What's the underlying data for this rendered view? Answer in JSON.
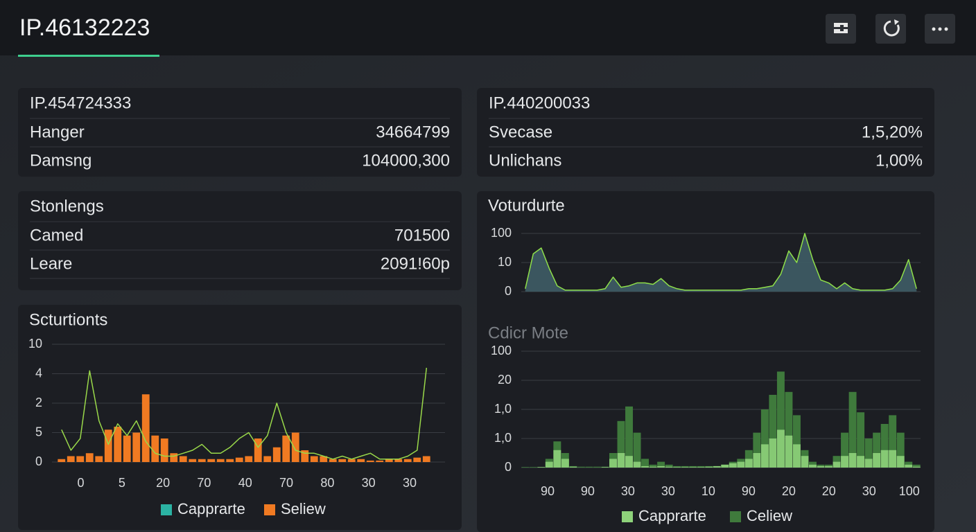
{
  "header": {
    "title": "IP.46132223"
  },
  "panels": [
    {
      "title": "IP.454724333",
      "rows": [
        [
          "Hanger",
          "34664799"
        ],
        [
          "Damsng",
          "104000,300"
        ]
      ]
    },
    {
      "title": "IP.440200033",
      "rows": [
        [
          "Svecase",
          "1,5,20%"
        ],
        [
          "Unlichans",
          "1,00%"
        ]
      ]
    },
    {
      "title": "Stonlengs",
      "rows": [
        [
          "Camed",
          "701500"
        ],
        [
          "Leare",
          "2091!60p"
        ]
      ]
    }
  ],
  "chart_data": [
    {
      "type": "combo",
      "title": "Scturtionts",
      "ylim": [
        0,
        4
      ],
      "yticks": [
        0,
        {
          "value": 1,
          "label": "5"
        },
        {
          "value": 2,
          "label": "2"
        },
        {
          "value": 3,
          "label": "4"
        },
        {
          "value": 4,
          "label": "10"
        }
      ],
      "xlim": [
        -0.7,
        8.86
      ],
      "xticks": [
        0,
        {
          "value": 1,
          "label": "5"
        },
        {
          "value": 2,
          "label": "20"
        },
        {
          "value": 3,
          "label": "70"
        },
        {
          "value": 4,
          "label": "40"
        },
        {
          "value": 5,
          "label": "70"
        },
        {
          "value": 6,
          "label": "80"
        },
        {
          "value": 7,
          "label": "30"
        },
        {
          "value": 8,
          "label": "30"
        }
      ],
      "grid": true,
      "series": [
        {
          "name": "Capprarte",
          "kind": "line",
          "color": "#2bb3a3",
          "line_color": "#9ad94a",
          "values": [
            1.1,
            0.4,
            0.8,
            3.1,
            1.4,
            0.6,
            1.3,
            0.9,
            1.4,
            0.7,
            0.3,
            0.2,
            0.2,
            0.3,
            0.4,
            0.6,
            0.3,
            0.3,
            0.5,
            0.8,
            1.0,
            0.5,
            0.9,
            2.0,
            1.0,
            0.4,
            0.3,
            0.3,
            0.2,
            0.1,
            0.2,
            0.1,
            0.2,
            0.3,
            0.1,
            0.1,
            0.1,
            0.2,
            0.4,
            3.2
          ]
        },
        {
          "name": "Seliew",
          "kind": "bar",
          "color": "#f07a22",
          "values": [
            0.1,
            0.2,
            0.2,
            0.3,
            0.2,
            1.1,
            1.2,
            0.9,
            1.0,
            2.3,
            0.9,
            0.8,
            0.3,
            0.2,
            0.1,
            0.1,
            0.1,
            0.1,
            0.1,
            0.15,
            0.2,
            0.8,
            0.2,
            0.5,
            0.9,
            1.0,
            0.4,
            0.2,
            0.2,
            0.1,
            0.1,
            0.1,
            0.1,
            0.05,
            0.05,
            0.1,
            0.1,
            0.1,
            0.15,
            0.2
          ]
        }
      ]
    },
    {
      "type": "area",
      "title": "Voturdurte",
      "ylim": [
        0,
        2
      ],
      "yticks": [
        0,
        {
          "value": 1,
          "label": "10"
        },
        {
          "value": 2,
          "label": "100"
        }
      ],
      "grid": true,
      "color": "#3f5c66",
      "line_color": "#8fe04a",
      "values": [
        0.1,
        1.3,
        1.5,
        0.8,
        0.2,
        0.05,
        0.05,
        0.05,
        0.05,
        0.05,
        0.1,
        0.5,
        0.15,
        0.2,
        0.3,
        0.3,
        0.25,
        0.45,
        0.2,
        0.1,
        0.05,
        0.05,
        0.05,
        0.05,
        0.05,
        0.05,
        0.05,
        0.05,
        0.1,
        0.1,
        0.15,
        0.2,
        0.6,
        1.4,
        1.0,
        2.0,
        1.1,
        0.4,
        0.3,
        0.1,
        0.3,
        0.1,
        0.05,
        0.05,
        0.05,
        0.05,
        0.1,
        0.4,
        1.1,
        0.1
      ]
    },
    {
      "type": "overlay-bar",
      "title": "Cdicr Mote",
      "ylim": [
        0,
        4
      ],
      "yticks": [
        0,
        {
          "value": 1,
          "label": "1,0"
        },
        {
          "value": 2,
          "label": "1,0"
        },
        {
          "value": 3,
          "label": "20"
        },
        {
          "value": 4,
          "label": "100"
        }
      ],
      "xlim": [
        -0.655,
        9.28
      ],
      "xticks": [
        {
          "value": 0,
          "label": "90"
        },
        {
          "value": 1,
          "label": "90"
        },
        {
          "value": 2,
          "label": "30"
        },
        {
          "value": 3,
          "label": "30"
        },
        {
          "value": 4,
          "label": "10"
        },
        {
          "value": 5,
          "label": "90"
        },
        {
          "value": 6,
          "label": "20"
        },
        {
          "value": 7,
          "label": "20"
        },
        {
          "value": 8,
          "label": "30"
        },
        {
          "value": 9,
          "label": "100"
        }
      ],
      "grid": true,
      "series": [
        {
          "name": "Capprarte",
          "color": "#8ed27a",
          "values": [
            0,
            0,
            0.02,
            0.2,
            0.6,
            0.3,
            0.03,
            0,
            0,
            0,
            0.02,
            0.3,
            0.5,
            0.4,
            0.2,
            0.05,
            0.03,
            0.05,
            0.03,
            0.02,
            0.02,
            0.02,
            0.02,
            0.03,
            0.05,
            0.1,
            0.15,
            0.2,
            0.3,
            0.5,
            0.8,
            1.0,
            1.3,
            1.1,
            0.8,
            0.4,
            0.1,
            0.05,
            0.05,
            0.2,
            0.4,
            0.5,
            0.4,
            0.3,
            0.5,
            0.6,
            0.6,
            0.4,
            0.1,
            0.03
          ]
        },
        {
          "name": "Celiew",
          "color": "#3f7a3c",
          "values": [
            0.02,
            0.02,
            0.02,
            0.3,
            0.9,
            0.5,
            0.05,
            0.03,
            0.03,
            0.03,
            0.03,
            0.5,
            1.6,
            2.1,
            1.2,
            0.3,
            0.1,
            0.2,
            0.1,
            0.05,
            0.05,
            0.05,
            0.05,
            0.05,
            0.05,
            0.1,
            0.2,
            0.3,
            0.6,
            1.2,
            2.0,
            2.5,
            3.3,
            2.6,
            1.8,
            0.6,
            0.2,
            0.1,
            0.1,
            0.4,
            1.2,
            2.6,
            1.9,
            1.0,
            1.2,
            1.5,
            1.8,
            1.2,
            0.2,
            0.1
          ]
        }
      ]
    }
  ]
}
